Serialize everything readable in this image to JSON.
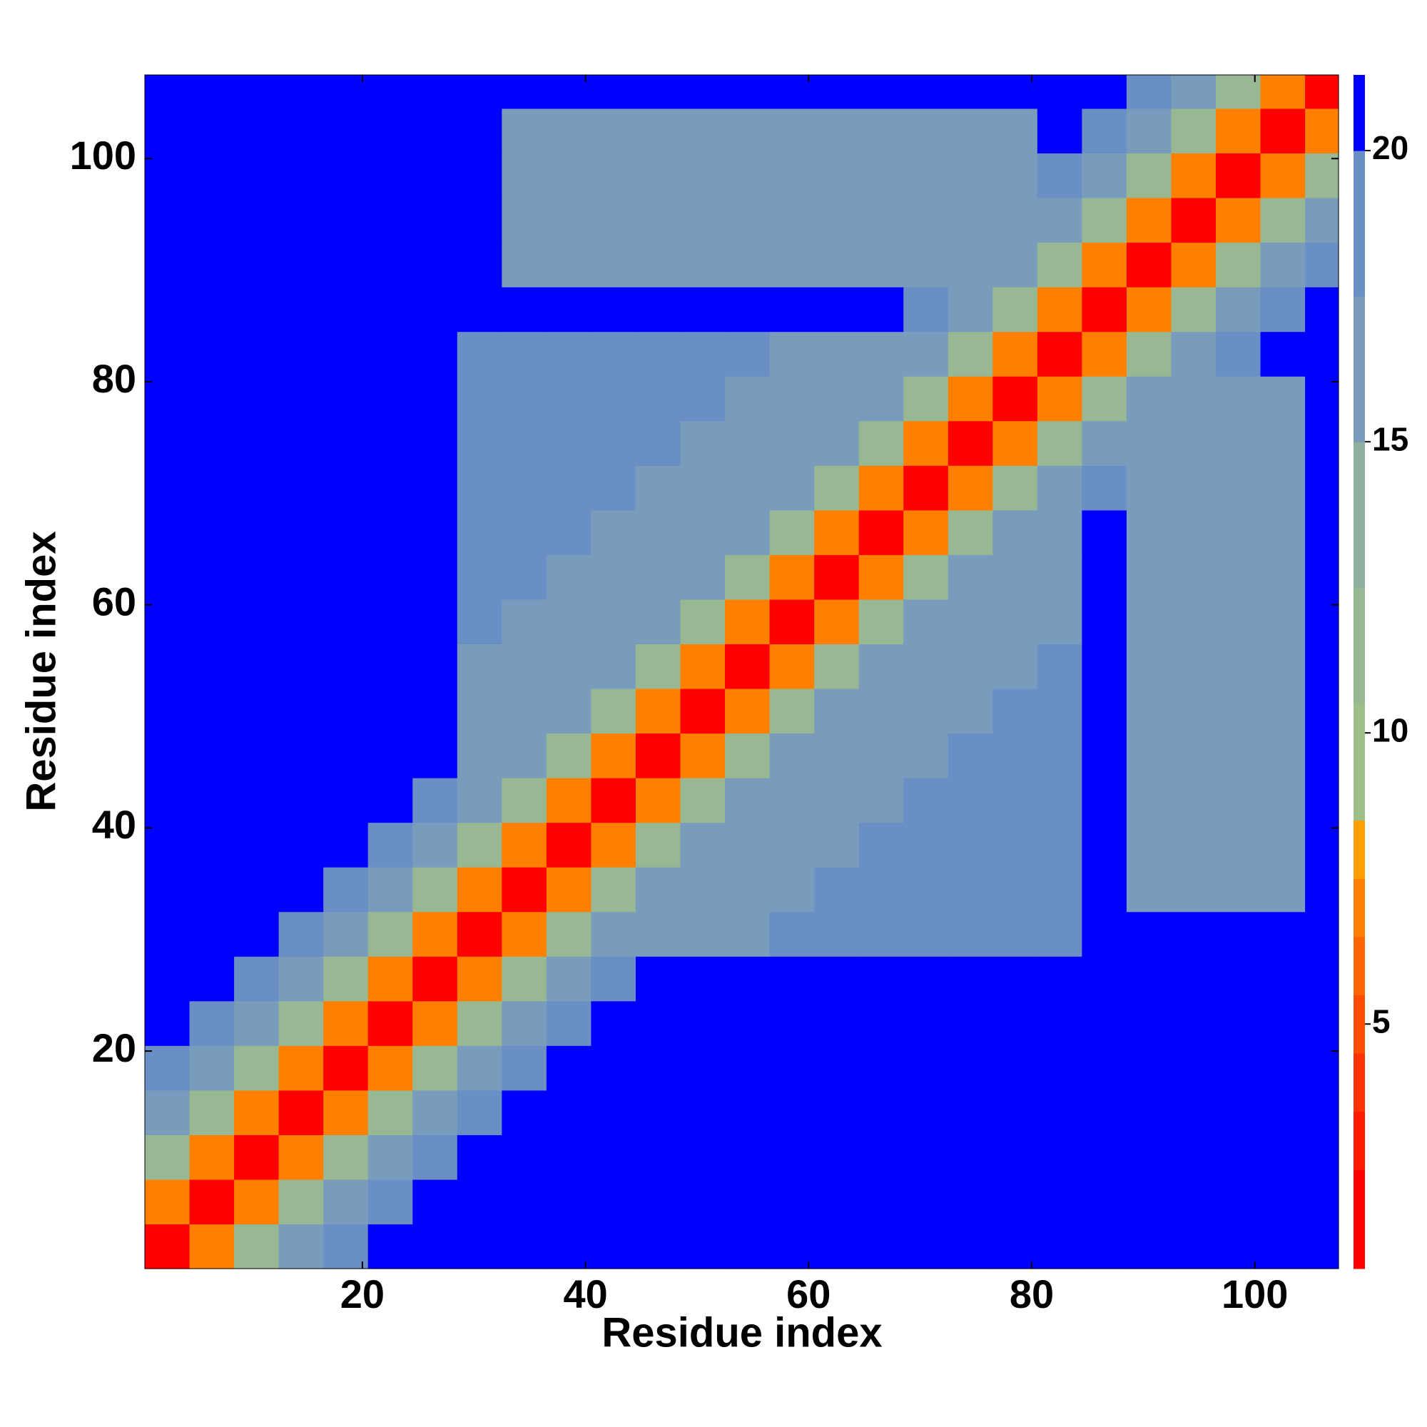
{
  "chart_data": {
    "type": "heatmap",
    "x_label": "Residue index",
    "y_label": "Residue index",
    "xlim": [
      0.5,
      107.5
    ],
    "ylim": [
      0.5,
      107.5
    ],
    "xticks": [
      20,
      40,
      60,
      80,
      100
    ],
    "yticks": [
      20,
      40,
      60,
      80,
      100
    ],
    "xbins": [
      0.5,
      4.5,
      8.5,
      12.5,
      16.5,
      20.5,
      24.5,
      28.5,
      32.5,
      36.5,
      40.5,
      44.5,
      48.5,
      52.5,
      56.5,
      60.5,
      64.5,
      68.5,
      72.5,
      76.5,
      80.5,
      84.5,
      88.5,
      92.5,
      96.5,
      100.5,
      104.5,
      107.5
    ],
    "ybins": [
      0.5,
      4.5,
      8.5,
      12.5,
      16.5,
      20.5,
      24.5,
      28.5,
      32.5,
      36.5,
      40.5,
      44.5,
      48.5,
      52.5,
      56.5,
      60.5,
      64.5,
      68.5,
      72.5,
      76.5,
      80.5,
      84.5,
      88.5,
      92.5,
      96.5,
      100.5,
      104.5,
      107.5
    ],
    "colorbar": {
      "lim": [
        0.8,
        21.3
      ],
      "ticks": [
        5,
        10,
        15,
        20
      ],
      "bounds": [
        0.8,
        2.5,
        3.5,
        4.5,
        5.5,
        6.5,
        7.5,
        8.5,
        10.5,
        12.5,
        15,
        17.5,
        20,
        21.3
      ],
      "colors": [
        "#ff0000",
        "#ff1a00",
        "#ff3300",
        "#ff4d00",
        "#ff6600",
        "#ff8000",
        "#ffa000",
        "#9fbf88",
        "#97b892",
        "#8eae9e",
        "#7a9cbc",
        "#6a8fc4",
        "#0000ff"
      ]
    },
    "z": [
      [
        2,
        7,
        11,
        15,
        18,
        21,
        21,
        21,
        21,
        21,
        21,
        21,
        21,
        21,
        21,
        21,
        21,
        21,
        21,
        21,
        21,
        21,
        21,
        21,
        21,
        21,
        21
      ],
      [
        7,
        2,
        7,
        11,
        15,
        18,
        21,
        21,
        21,
        21,
        21,
        21,
        21,
        21,
        21,
        21,
        21,
        21,
        21,
        21,
        21,
        21,
        21,
        21,
        21,
        21,
        21
      ],
      [
        11,
        7,
        2,
        7,
        11,
        15,
        18,
        21,
        21,
        21,
        21,
        21,
        21,
        21,
        21,
        21,
        21,
        21,
        21,
        21,
        21,
        21,
        21,
        21,
        21,
        21,
        21
      ],
      [
        15,
        11,
        7,
        2,
        7,
        11,
        15,
        18,
        21,
        21,
        21,
        21,
        21,
        21,
        21,
        21,
        21,
        21,
        21,
        21,
        21,
        21,
        21,
        21,
        21,
        21,
        21
      ],
      [
        18,
        15,
        11,
        7,
        2,
        7,
        11,
        15,
        18,
        21,
        21,
        21,
        21,
        21,
        21,
        21,
        21,
        21,
        21,
        21,
        21,
        21,
        21,
        21,
        21,
        21,
        21
      ],
      [
        21,
        18,
        15,
        11,
        7,
        2,
        7,
        11,
        15,
        18,
        21,
        21,
        21,
        21,
        21,
        21,
        21,
        21,
        21,
        21,
        21,
        21,
        21,
        21,
        21,
        21,
        21
      ],
      [
        21,
        21,
        18,
        15,
        11,
        7,
        2,
        7,
        11,
        15,
        18,
        21,
        21,
        21,
        21,
        21,
        21,
        21,
        21,
        21,
        21,
        21,
        21,
        21,
        21,
        21,
        21
      ],
      [
        21,
        21,
        21,
        18,
        15,
        11,
        7,
        2,
        7,
        11,
        15,
        16,
        17,
        17,
        19,
        19,
        19,
        19,
        19,
        19,
        19,
        21,
        21,
        21,
        21,
        21,
        21
      ],
      [
        21,
        21,
        21,
        21,
        18,
        15,
        11,
        7,
        2,
        7,
        11,
        15,
        16,
        17,
        17,
        19,
        19,
        19,
        19,
        19,
        19,
        21,
        16,
        16,
        16,
        16,
        21
      ],
      [
        21,
        21,
        21,
        21,
        21,
        18,
        15,
        11,
        7,
        2,
        7,
        11,
        15,
        16,
        17,
        17,
        19,
        19,
        19,
        19,
        19,
        21,
        16,
        16,
        16,
        16,
        21
      ],
      [
        21,
        21,
        21,
        21,
        21,
        21,
        18,
        15,
        11,
        7,
        2,
        7,
        11,
        15,
        16,
        17,
        17,
        19,
        19,
        19,
        19,
        21,
        16,
        16,
        16,
        16,
        21
      ],
      [
        21,
        21,
        21,
        21,
        21,
        21,
        21,
        16,
        15,
        11,
        7,
        2,
        7,
        11,
        15,
        16,
        17,
        17,
        19,
        19,
        19,
        21,
        16,
        16,
        16,
        16,
        21
      ],
      [
        21,
        21,
        21,
        21,
        21,
        21,
        21,
        17,
        16,
        15,
        11,
        7,
        2,
        7,
        11,
        15,
        16,
        17,
        17,
        19,
        19,
        21,
        16,
        16,
        16,
        16,
        21
      ],
      [
        21,
        21,
        21,
        21,
        21,
        21,
        21,
        17,
        17,
        16,
        15,
        11,
        7,
        2,
        7,
        11,
        15,
        16,
        17,
        17,
        19,
        21,
        16,
        16,
        16,
        16,
        21
      ],
      [
        21,
        21,
        21,
        21,
        21,
        21,
        21,
        19,
        17,
        17,
        16,
        15,
        11,
        7,
        2,
        7,
        11,
        15,
        16,
        17,
        17,
        21,
        16,
        16,
        16,
        16,
        21
      ],
      [
        21,
        21,
        21,
        21,
        21,
        21,
        21,
        19,
        19,
        17,
        17,
        16,
        15,
        11,
        7,
        2,
        7,
        11,
        15,
        16,
        17,
        21,
        16,
        16,
        16,
        16,
        21
      ],
      [
        21,
        21,
        21,
        21,
        21,
        21,
        21,
        19,
        19,
        19,
        17,
        17,
        16,
        15,
        11,
        7,
        2,
        7,
        11,
        15,
        16,
        21,
        16,
        16,
        16,
        16,
        21
      ],
      [
        21,
        21,
        21,
        21,
        21,
        21,
        21,
        19,
        19,
        19,
        19,
        17,
        17,
        16,
        15,
        11,
        7,
        2,
        7,
        11,
        15,
        18,
        16,
        16,
        16,
        16,
        21
      ],
      [
        21,
        21,
        21,
        21,
        21,
        21,
        21,
        19,
        19,
        19,
        19,
        19,
        17,
        17,
        16,
        15,
        11,
        7,
        2,
        7,
        11,
        15,
        16,
        16,
        16,
        16,
        21
      ],
      [
        21,
        21,
        21,
        21,
        21,
        21,
        21,
        19,
        19,
        19,
        19,
        19,
        19,
        17,
        17,
        16,
        15,
        11,
        7,
        2,
        7,
        11,
        15,
        16,
        16,
        16,
        21
      ],
      [
        21,
        21,
        21,
        21,
        21,
        21,
        21,
        19,
        19,
        19,
        19,
        19,
        19,
        19,
        17,
        17,
        16,
        15,
        11,
        7,
        2,
        7,
        11,
        15,
        18,
        21,
        21
      ],
      [
        21,
        21,
        21,
        21,
        21,
        21,
        21,
        21,
        21,
        21,
        21,
        21,
        21,
        21,
        21,
        21,
        21,
        18,
        15,
        11,
        7,
        2,
        7,
        11,
        15,
        18,
        21
      ],
      [
        21,
        21,
        21,
        21,
        21,
        21,
        21,
        21,
        16,
        16,
        16,
        16,
        16,
        16,
        16,
        16,
        16,
        16,
        16,
        15,
        11,
        7,
        2,
        7,
        11,
        15,
        18
      ],
      [
        21,
        21,
        21,
        21,
        21,
        21,
        21,
        21,
        16,
        16,
        16,
        16,
        16,
        16,
        16,
        16,
        16,
        16,
        16,
        16,
        15,
        11,
        7,
        2,
        7,
        11,
        15
      ],
      [
        21,
        21,
        21,
        21,
        21,
        21,
        21,
        21,
        16,
        16,
        16,
        16,
        16,
        16,
        16,
        16,
        16,
        16,
        16,
        16,
        18,
        15,
        11,
        7,
        2,
        7,
        11
      ],
      [
        21,
        21,
        21,
        21,
        21,
        21,
        21,
        21,
        16,
        16,
        16,
        16,
        16,
        16,
        16,
        16,
        16,
        16,
        16,
        16,
        21,
        18,
        15,
        11,
        7,
        2,
        7
      ],
      [
        21,
        21,
        21,
        21,
        21,
        21,
        21,
        21,
        21,
        21,
        21,
        21,
        21,
        21,
        21,
        21,
        21,
        21,
        21,
        21,
        21,
        21,
        18,
        15,
        11,
        7,
        2
      ]
    ]
  }
}
